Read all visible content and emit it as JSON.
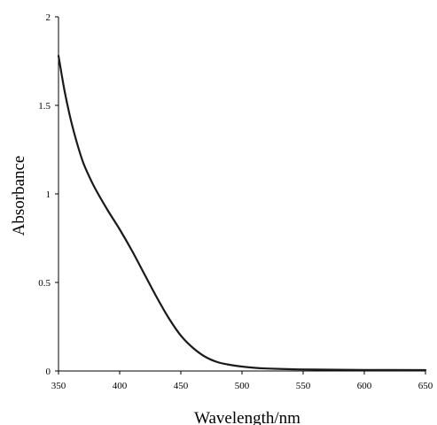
{
  "chart_data": {
    "type": "line",
    "title": "",
    "xlabel": "Wavelength/nm",
    "ylabel": "Absorbance",
    "xlim": [
      350,
      650
    ],
    "ylim": [
      0,
      2
    ],
    "x_ticks": [
      350,
      400,
      450,
      500,
      550,
      600,
      650
    ],
    "y_ticks": [
      0,
      0.5,
      1,
      1.5,
      2
    ],
    "x_tick_labels": [
      "350",
      "400",
      "450",
      "500",
      "550",
      "600",
      "650"
    ],
    "y_tick_labels": [
      "0",
      "0.5",
      "1",
      "1.5",
      "2"
    ],
    "grid": false,
    "legend": "none",
    "series": [
      {
        "color": "#1a1a1a",
        "x": [
          350,
          355,
          360,
          365,
          370,
          375,
          380,
          390,
          400,
          410,
          420,
          430,
          440,
          450,
          460,
          470,
          480,
          490,
          500,
          510,
          520,
          540,
          560,
          600,
          650
        ],
        "y": [
          1.78,
          1.58,
          1.42,
          1.29,
          1.18,
          1.1,
          1.03,
          0.91,
          0.8,
          0.68,
          0.55,
          0.42,
          0.3,
          0.2,
          0.13,
          0.08,
          0.05,
          0.035,
          0.025,
          0.018,
          0.014,
          0.01,
          0.008,
          0.006,
          0.005
        ]
      }
    ]
  }
}
